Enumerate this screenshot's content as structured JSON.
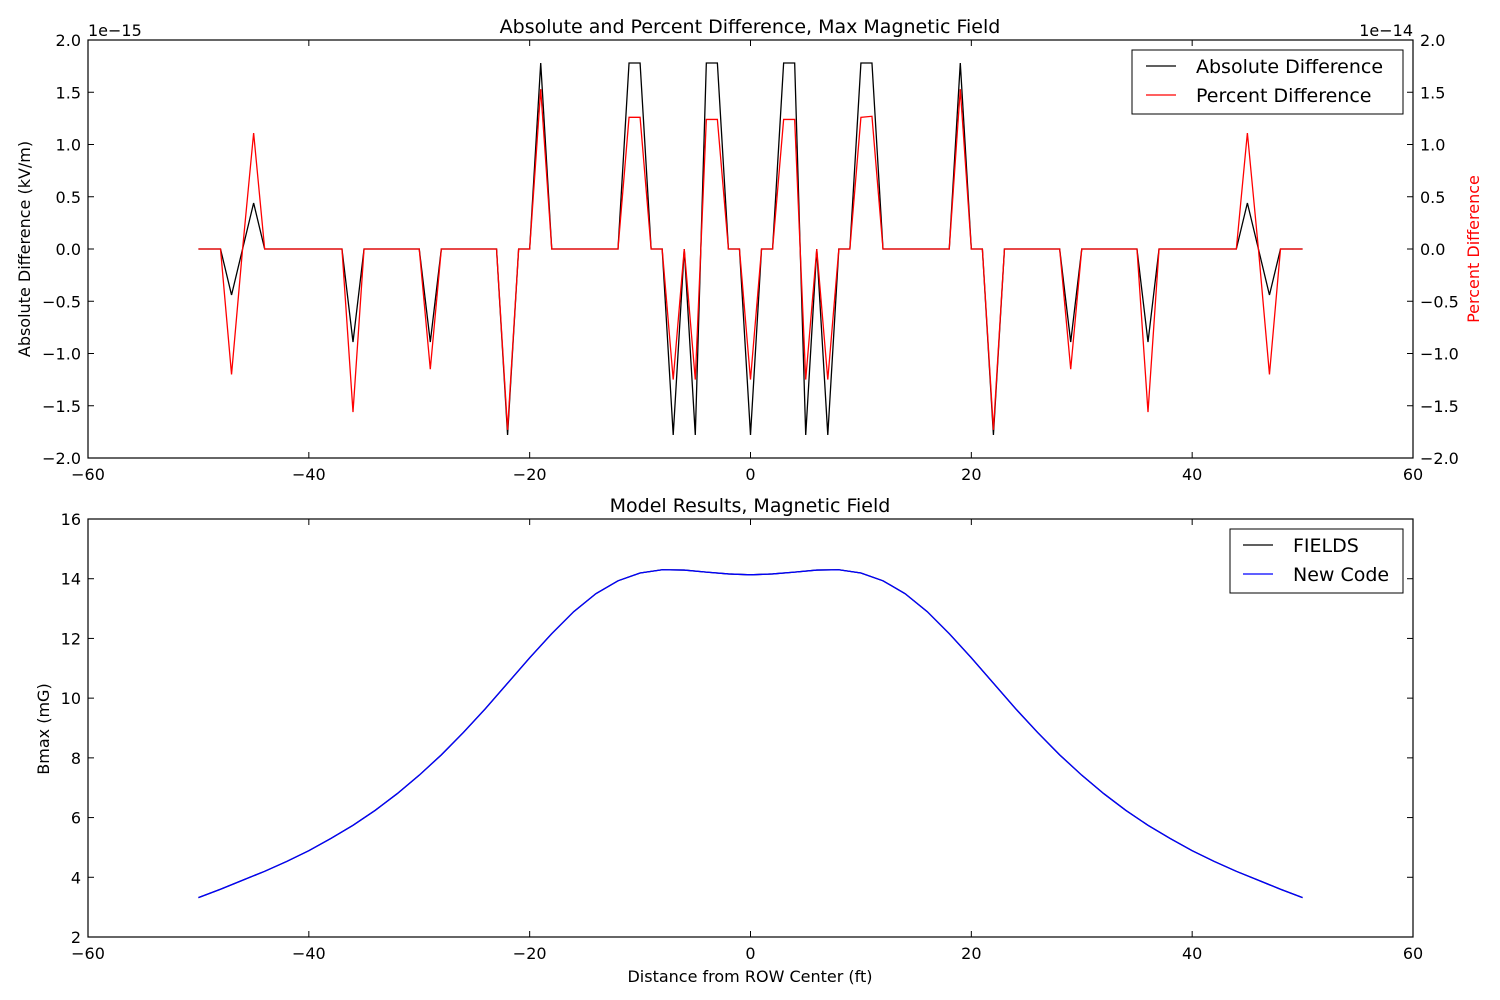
{
  "chart_data": [
    {
      "type": "line",
      "title": "Absolute and Percent Difference, Max Magnetic Field",
      "xlabel": "",
      "ylabel": "Absolute Difference (kV/m)",
      "y2label": "Percent Difference",
      "xlim": [
        -60,
        60
      ],
      "ylim": [
        -2.0,
        2.0
      ],
      "y2lim": [
        -2.0,
        2.0
      ],
      "y_offset_label": "1e−15",
      "y2_offset_label": "1e−14",
      "x_ticks": [
        -60,
        -40,
        -20,
        0,
        20,
        40,
        60
      ],
      "x_tick_labels": [
        "−60",
        "−40",
        "−20",
        "0",
        "20",
        "40",
        "60"
      ],
      "y_ticks": [
        -2.0,
        -1.5,
        -1.0,
        -0.5,
        0.0,
        0.5,
        1.0,
        1.5,
        2.0
      ],
      "y_tick_labels": [
        "−2.0",
        "−1.5",
        "−1.0",
        "−0.5",
        "0.0",
        "0.5",
        "1.0",
        "1.5",
        "2.0"
      ],
      "grid": false,
      "legend_position": "top-right",
      "x": [
        -50,
        -49,
        -48,
        -47,
        -46,
        -45,
        -44,
        -43,
        -42,
        -41,
        -40,
        -39,
        -38,
        -37,
        -36,
        -35,
        -34,
        -33,
        -32,
        -31,
        -30,
        -29,
        -28,
        -27,
        -26,
        -25,
        -24,
        -23,
        -22,
        -21,
        -20,
        -19,
        -18,
        -17,
        -16,
        -15,
        -14,
        -13,
        -12,
        -11,
        -10,
        -9,
        -8,
        -7,
        -6,
        -5,
        -4,
        -3,
        -2,
        -1,
        0,
        1,
        2,
        3,
        4,
        5,
        6,
        7,
        8,
        9,
        10,
        11,
        12,
        13,
        14,
        15,
        16,
        17,
        18,
        19,
        20,
        21,
        22,
        23,
        24,
        25,
        26,
        27,
        28,
        29,
        30,
        31,
        32,
        33,
        34,
        35,
        36,
        37,
        38,
        39,
        40,
        41,
        42,
        43,
        44,
        45,
        46,
        47,
        48,
        49,
        50
      ],
      "series": [
        {
          "name": "Absolute Difference",
          "color": "#000000",
          "axis": "left",
          "values": [
            0,
            0,
            0,
            -0.44,
            0,
            0.44,
            0,
            0,
            0,
            0,
            0,
            0,
            0,
            0,
            -0.89,
            0,
            0,
            0,
            0,
            0,
            0,
            -0.89,
            0,
            0,
            0,
            0,
            0,
            0,
            -1.78,
            0,
            0,
            1.78,
            0,
            0,
            0,
            0,
            0,
            0,
            0,
            1.78,
            1.78,
            0,
            0,
            -1.78,
            0,
            -1.78,
            1.78,
            1.78,
            0,
            0,
            -1.78,
            0,
            0,
            1.78,
            1.78,
            -1.78,
            0,
            -1.78,
            0,
            0,
            1.78,
            1.78,
            0,
            0,
            0,
            0,
            0,
            0,
            0,
            1.78,
            0,
            0,
            -1.78,
            0,
            0,
            0,
            0,
            0,
            0,
            -0.89,
            0,
            0,
            0,
            0,
            0,
            0,
            -0.89,
            0,
            0,
            0,
            0,
            0,
            0,
            0,
            0,
            0.44,
            0,
            -0.44,
            0,
            0,
            0
          ]
        },
        {
          "name": "Percent Difference",
          "color": "#ff0000",
          "axis": "right",
          "values": [
            0,
            0,
            0,
            -1.2,
            0,
            1.11,
            0,
            0,
            0,
            0,
            0,
            0,
            0,
            0,
            -1.56,
            0,
            0,
            0,
            0,
            0,
            0,
            -1.15,
            0,
            0,
            0,
            0,
            0,
            0,
            -1.73,
            0,
            0,
            1.53,
            0,
            0,
            0,
            0,
            0,
            0,
            0,
            1.26,
            1.26,
            0,
            0,
            -1.25,
            0,
            -1.25,
            1.24,
            1.24,
            0,
            0,
            -1.25,
            0,
            0,
            1.24,
            1.24,
            -1.25,
            0,
            -1.25,
            0,
            0,
            1.26,
            1.27,
            0,
            0,
            0,
            0,
            0,
            0,
            0,
            1.53,
            0,
            0,
            -1.73,
            0,
            0,
            0,
            0,
            0,
            0,
            -1.15,
            0,
            0,
            0,
            0,
            0,
            0,
            -1.56,
            0,
            0,
            0,
            0,
            0,
            0,
            0,
            0,
            1.11,
            0,
            -1.2,
            0,
            0,
            0
          ]
        }
      ]
    },
    {
      "type": "line",
      "title": "Model Results, Magnetic Field",
      "xlabel": "Distance from ROW Center (ft)",
      "ylabel": "Bmax (mG)",
      "xlim": [
        -60,
        60
      ],
      "ylim": [
        2,
        16
      ],
      "x_ticks": [
        -60,
        -40,
        -20,
        0,
        20,
        40,
        60
      ],
      "x_tick_labels": [
        "−60",
        "−40",
        "−20",
        "0",
        "20",
        "40",
        "60"
      ],
      "y_ticks": [
        2,
        4,
        6,
        8,
        10,
        12,
        14,
        16
      ],
      "y_tick_labels": [
        "2",
        "4",
        "6",
        "8",
        "10",
        "12",
        "14",
        "16"
      ],
      "grid": false,
      "legend_position": "top-right",
      "x": [
        -50,
        -48,
        -46,
        -44,
        -42,
        -40,
        -38,
        -36,
        -34,
        -32,
        -30,
        -28,
        -26,
        -24,
        -22,
        -20,
        -18,
        -16,
        -14,
        -12,
        -10,
        -8,
        -6,
        -4,
        -2,
        0,
        2,
        4,
        6,
        8,
        10,
        12,
        14,
        16,
        18,
        20,
        22,
        24,
        26,
        28,
        30,
        32,
        34,
        36,
        38,
        40,
        42,
        44,
        46,
        48,
        50
      ],
      "series": [
        {
          "name": "FIELDS",
          "color": "#000000",
          "values": [
            3.32,
            3.6,
            3.9,
            4.2,
            4.53,
            4.89,
            5.3,
            5.74,
            6.24,
            6.8,
            7.42,
            8.1,
            8.85,
            9.65,
            10.5,
            11.35,
            12.16,
            12.9,
            13.5,
            13.93,
            14.19,
            14.3,
            14.29,
            14.22,
            14.16,
            14.13,
            14.16,
            14.22,
            14.29,
            14.3,
            14.19,
            13.93,
            13.5,
            12.9,
            12.16,
            11.35,
            10.5,
            9.65,
            8.85,
            8.1,
            7.42,
            6.8,
            6.24,
            5.74,
            5.3,
            4.89,
            4.53,
            4.2,
            3.9,
            3.6,
            3.32
          ]
        },
        {
          "name": "New Code",
          "color": "#0000ff",
          "values": [
            3.32,
            3.6,
            3.9,
            4.2,
            4.53,
            4.89,
            5.3,
            5.74,
            6.24,
            6.8,
            7.42,
            8.1,
            8.85,
            9.65,
            10.5,
            11.35,
            12.16,
            12.9,
            13.5,
            13.93,
            14.19,
            14.3,
            14.29,
            14.22,
            14.16,
            14.13,
            14.16,
            14.22,
            14.29,
            14.3,
            14.19,
            13.93,
            13.5,
            12.9,
            12.16,
            11.35,
            10.5,
            9.65,
            8.85,
            8.1,
            7.42,
            6.8,
            6.24,
            5.74,
            5.3,
            4.89,
            4.53,
            4.2,
            3.9,
            3.6,
            3.32
          ]
        }
      ]
    }
  ]
}
